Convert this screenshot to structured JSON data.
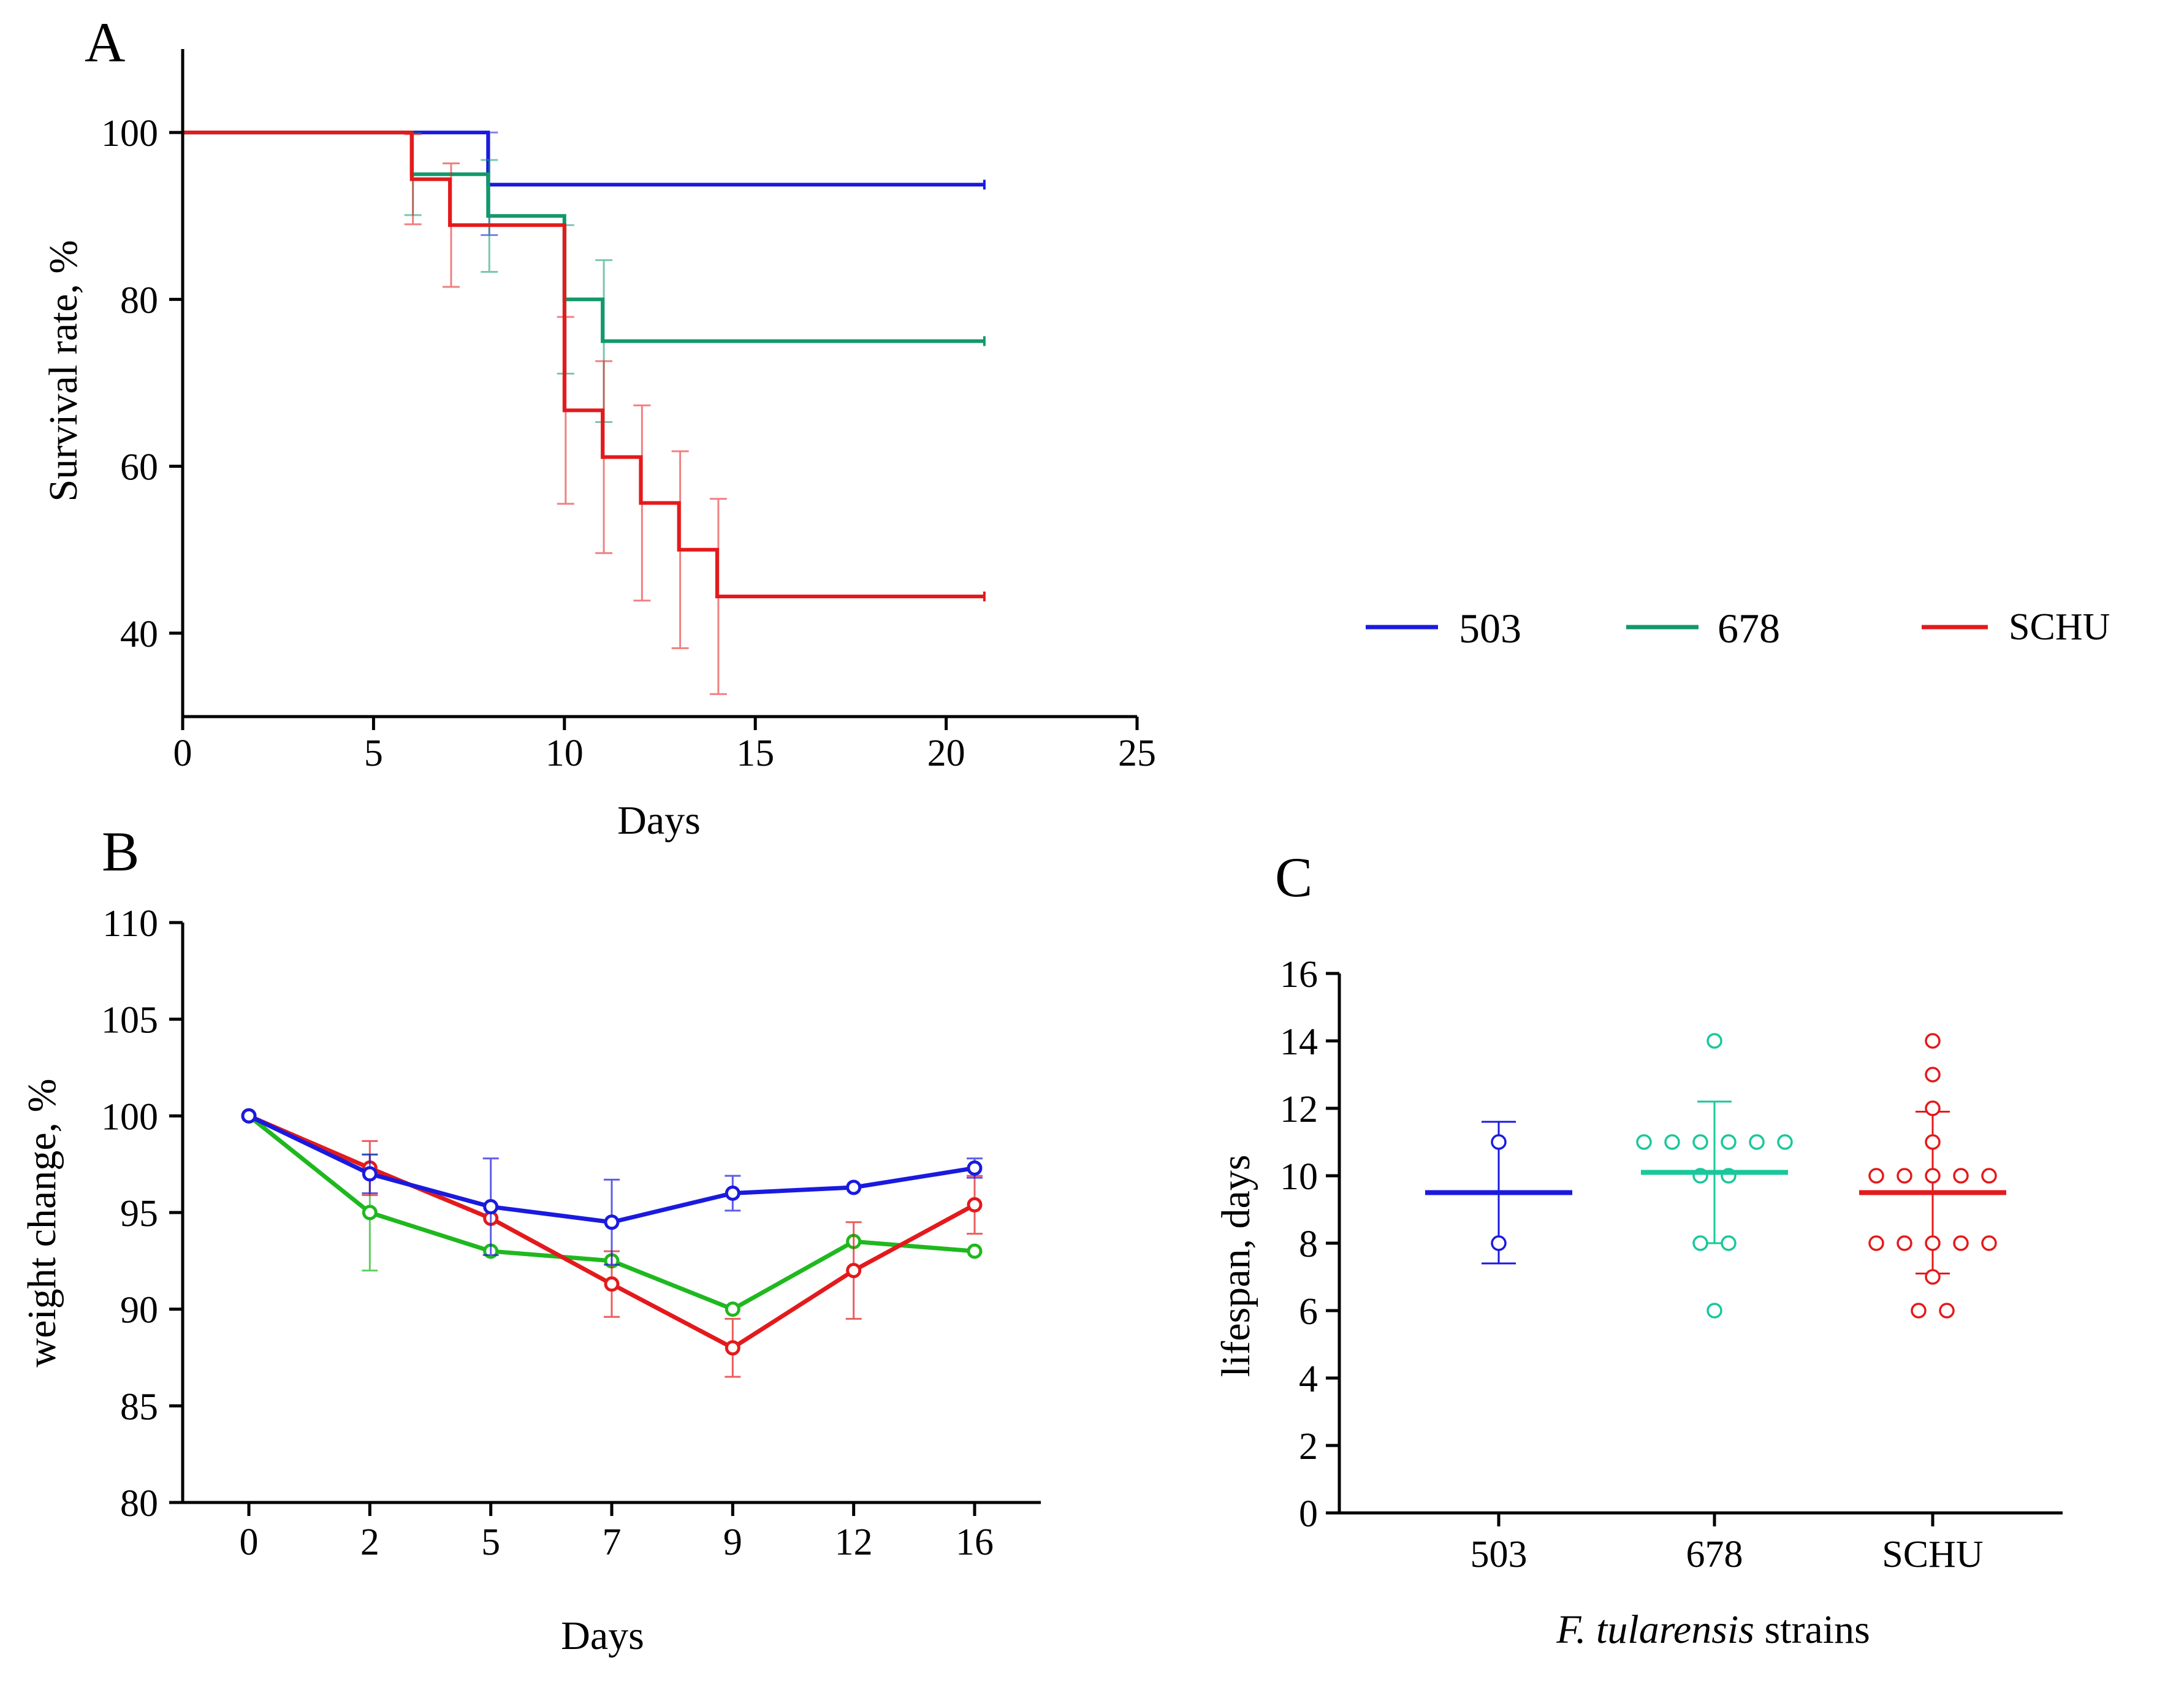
{
  "colors": {
    "503": "#1a1adf",
    "678": "#12996a",
    "SCHU": "#e31a1c",
    "678_B": "#1fb81f",
    "678_C": "#19c79a"
  },
  "legend": [
    {
      "label": "503",
      "color": "#1a1adf"
    },
    {
      "label": "678",
      "color": "#12996a"
    },
    {
      "label": "SCHU",
      "color": "#e31a1c"
    }
  ],
  "chart_data": [
    {
      "panel": "A",
      "type": "line",
      "subtype": "step",
      "xlabel": "Days",
      "ylabel": "Survival rate, %",
      "xlim": [
        0,
        25
      ],
      "ylim": [
        30,
        110
      ],
      "xticks": [
        "0",
        "5",
        "10",
        "15",
        "20",
        "25"
      ],
      "yticks": [
        "40",
        "60",
        "80",
        "100"
      ],
      "series": [
        {
          "name": "503",
          "x": [
            0,
            8,
            21
          ],
          "y": [
            100,
            93.75,
            93.75
          ],
          "err_x": [
            8
          ],
          "err_low": [
            87.7
          ],
          "err_high": [
            100
          ]
        },
        {
          "name": "678",
          "x": [
            0,
            6,
            8,
            10,
            11,
            21
          ],
          "y": [
            100,
            95,
            90,
            80,
            75,
            75
          ],
          "err_x": [
            6,
            8,
            10,
            11
          ],
          "err_low": [
            90.1,
            83.3,
            71.1,
            65.3
          ],
          "err_high": [
            99.9,
            96.7,
            88.9,
            84.7
          ]
        },
        {
          "name": "SCHU",
          "x": [
            0,
            6,
            7,
            10,
            11,
            12,
            13,
            14,
            21
          ],
          "y": [
            100,
            94.4,
            88.9,
            66.7,
            61.1,
            55.6,
            50,
            44.4,
            44.4
          ],
          "err_x": [
            6,
            7,
            10,
            11,
            12,
            13,
            14
          ],
          "err_low": [
            89.0,
            81.5,
            55.5,
            49.6,
            43.9,
            38.2,
            32.7
          ],
          "err_high": [
            99.8,
            96.3,
            77.9,
            72.6,
            67.3,
            61.8,
            56.1
          ]
        }
      ]
    },
    {
      "panel": "B",
      "type": "line",
      "xlabel": "Days",
      "ylabel": "weight change, %",
      "categories": [
        "0",
        "2",
        "5",
        "7",
        "9",
        "12",
        "16"
      ],
      "ylim": [
        80,
        110
      ],
      "yticks": [
        "80",
        "85",
        "90",
        "95",
        "100",
        "105",
        "110"
      ],
      "series": [
        {
          "name": "503",
          "values": [
            100,
            97.0,
            95.3,
            94.5,
            96.0,
            96.3,
            97.3
          ],
          "errors": [
            0,
            1.0,
            2.5,
            2.2,
            0.9,
            0,
            0.5
          ]
        },
        {
          "name": "678",
          "values": [
            100,
            95.0,
            93.0,
            92.5,
            90.0,
            93.5,
            93.0
          ],
          "errors": [
            0,
            3.0,
            0,
            0,
            0,
            0,
            0
          ]
        },
        {
          "name": "SCHU",
          "values": [
            100,
            97.3,
            94.7,
            91.3,
            88.0,
            92.0,
            95.4
          ],
          "errors": [
            0,
            1.4,
            0,
            1.7,
            1.5,
            2.5,
            1.5
          ]
        }
      ]
    },
    {
      "panel": "C",
      "type": "scatter",
      "xlabel_italic": "F. tularensis",
      "xlabel_rest": " strains",
      "ylabel": "lifespan, days",
      "categories": [
        "503",
        "678",
        "SCHU"
      ],
      "ylim": [
        0,
        16
      ],
      "yticks": [
        "0",
        "2",
        "4",
        "6",
        "8",
        "10",
        "12",
        "14",
        "16"
      ],
      "groups": [
        {
          "name": "503",
          "points": [
            11,
            8
          ],
          "mean": 9.5,
          "sd_low": 7.4,
          "sd_high": 11.6
        },
        {
          "name": "678",
          "points": [
            14,
            11,
            11,
            11,
            11,
            11,
            11,
            10,
            10,
            8,
            8,
            6
          ],
          "mean": 10.1,
          "sd_low": 8.0,
          "sd_high": 12.2
        },
        {
          "name": "SCHU",
          "points": [
            14,
            13,
            12,
            11,
            10,
            10,
            10,
            10,
            10,
            8,
            8,
            8,
            8,
            8,
            7,
            6,
            6
          ],
          "mean": 9.5,
          "sd_low": 7.1,
          "sd_high": 11.9
        }
      ]
    }
  ]
}
